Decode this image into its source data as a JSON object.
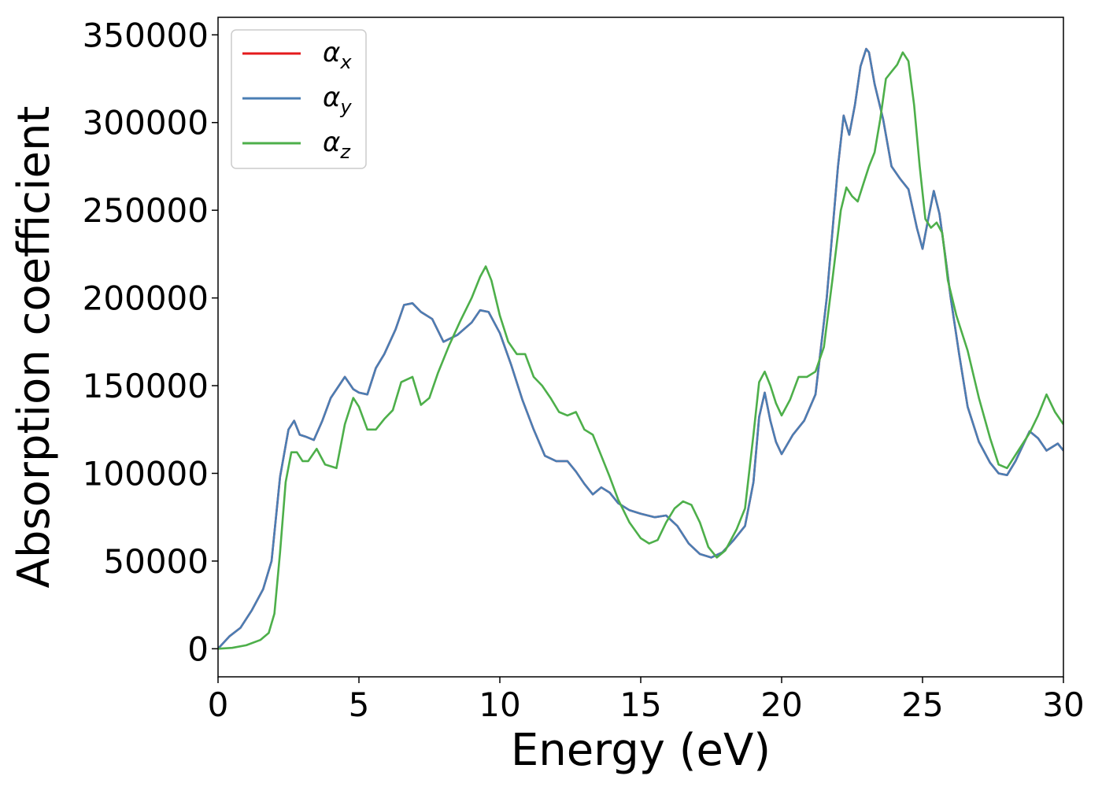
{
  "chart_data": {
    "type": "line",
    "xlabel": "Energy (eV)",
    "ylabel": "Absorption coefficient",
    "xlim": [
      0,
      30
    ],
    "ylim": [
      -16000,
      360000
    ],
    "xticks": [
      0,
      5,
      10,
      15,
      20,
      25,
      30
    ],
    "yticks": [
      0,
      50000,
      100000,
      150000,
      200000,
      250000,
      300000,
      350000
    ],
    "grid": false,
    "legend": "top-left",
    "series": [
      {
        "name": "αx",
        "base": "α",
        "sub": "x",
        "color": "#e41a1c",
        "x": [
          0,
          0.4,
          0.8,
          1.2,
          1.6,
          1.9,
          2.2,
          2.5,
          2.7,
          2.9,
          3.1,
          3.4,
          3.7,
          4.0,
          4.5,
          4.8,
          5.0,
          5.3,
          5.6,
          5.9,
          6.3,
          6.6,
          6.9,
          7.2,
          7.6,
          8.0,
          8.5,
          9.0,
          9.3,
          9.6,
          10.0,
          10.4,
          10.8,
          11.2,
          11.6,
          12.0,
          12.4,
          12.7,
          13.0,
          13.3,
          13.6,
          13.9,
          14.2,
          14.6,
          15.0,
          15.5,
          15.9,
          16.3,
          16.7,
          17.1,
          17.5,
          17.9,
          18.3,
          18.7,
          19.0,
          19.2,
          19.4,
          19.6,
          19.8,
          20.0,
          20.4,
          20.8,
          21.2,
          21.6,
          22.0,
          22.2,
          22.4,
          22.6,
          22.8,
          23.0,
          23.1,
          23.3,
          23.6,
          23.9,
          24.2,
          24.5,
          24.8,
          25.0,
          25.2,
          25.4,
          25.6,
          25.8,
          26.0,
          26.3,
          26.6,
          27.0,
          27.4,
          27.7,
          28.0,
          28.3,
          28.8,
          29.1,
          29.4,
          29.8,
          30.0
        ],
        "y": [
          0,
          7000,
          12000,
          22000,
          34000,
          50000,
          98000,
          125000,
          130000,
          122000,
          121000,
          119000,
          130000,
          143000,
          155000,
          148000,
          146000,
          145000,
          160000,
          168000,
          182000,
          196000,
          197000,
          192000,
          188000,
          175000,
          179000,
          186000,
          193000,
          192000,
          180000,
          162000,
          142000,
          125000,
          110000,
          107000,
          107000,
          101000,
          94000,
          88000,
          92000,
          89000,
          83000,
          79000,
          77000,
          75000,
          76000,
          70000,
          60000,
          54000,
          52000,
          55000,
          62000,
          70000,
          95000,
          132000,
          146000,
          130000,
          118000,
          111000,
          122000,
          130000,
          145000,
          200000,
          275000,
          304000,
          293000,
          310000,
          332000,
          342000,
          340000,
          322000,
          302000,
          275000,
          268000,
          262000,
          240000,
          228000,
          245000,
          261000,
          248000,
          225000,
          200000,
          168000,
          138000,
          118000,
          106000,
          100000,
          99000,
          107000,
          124000,
          120000,
          113000,
          117000,
          113000
        ]
      },
      {
        "name": "αy",
        "base": "α",
        "sub": "y",
        "color": "#4a7eb4",
        "x": [
          0,
          0.4,
          0.8,
          1.2,
          1.6,
          1.9,
          2.2,
          2.5,
          2.7,
          2.9,
          3.1,
          3.4,
          3.7,
          4.0,
          4.5,
          4.8,
          5.0,
          5.3,
          5.6,
          5.9,
          6.3,
          6.6,
          6.9,
          7.2,
          7.6,
          8.0,
          8.5,
          9.0,
          9.3,
          9.6,
          10.0,
          10.4,
          10.8,
          11.2,
          11.6,
          12.0,
          12.4,
          12.7,
          13.0,
          13.3,
          13.6,
          13.9,
          14.2,
          14.6,
          15.0,
          15.5,
          15.9,
          16.3,
          16.7,
          17.1,
          17.5,
          17.9,
          18.3,
          18.7,
          19.0,
          19.2,
          19.4,
          19.6,
          19.8,
          20.0,
          20.4,
          20.8,
          21.2,
          21.6,
          22.0,
          22.2,
          22.4,
          22.6,
          22.8,
          23.0,
          23.1,
          23.3,
          23.6,
          23.9,
          24.2,
          24.5,
          24.8,
          25.0,
          25.2,
          25.4,
          25.6,
          25.8,
          26.0,
          26.3,
          26.6,
          27.0,
          27.4,
          27.7,
          28.0,
          28.3,
          28.8,
          29.1,
          29.4,
          29.8,
          30.0
        ],
        "y": [
          0,
          7000,
          12000,
          22000,
          34000,
          50000,
          98000,
          125000,
          130000,
          122000,
          121000,
          119000,
          130000,
          143000,
          155000,
          148000,
          146000,
          145000,
          160000,
          168000,
          182000,
          196000,
          197000,
          192000,
          188000,
          175000,
          179000,
          186000,
          193000,
          192000,
          180000,
          162000,
          142000,
          125000,
          110000,
          107000,
          107000,
          101000,
          94000,
          88000,
          92000,
          89000,
          83000,
          79000,
          77000,
          75000,
          76000,
          70000,
          60000,
          54000,
          52000,
          55000,
          62000,
          70000,
          95000,
          132000,
          146000,
          130000,
          118000,
          111000,
          122000,
          130000,
          145000,
          200000,
          275000,
          304000,
          293000,
          310000,
          332000,
          342000,
          340000,
          322000,
          302000,
          275000,
          268000,
          262000,
          240000,
          228000,
          245000,
          261000,
          248000,
          225000,
          200000,
          168000,
          138000,
          118000,
          106000,
          100000,
          99000,
          107000,
          124000,
          120000,
          113000,
          117000,
          113000
        ]
      },
      {
        "name": "αz",
        "base": "α",
        "sub": "z",
        "color": "#4daf4a",
        "x": [
          0,
          0.5,
          1.0,
          1.5,
          1.8,
          2.0,
          2.2,
          2.4,
          2.6,
          2.8,
          3.0,
          3.2,
          3.5,
          3.8,
          4.2,
          4.5,
          4.8,
          5.0,
          5.3,
          5.6,
          5.9,
          6.2,
          6.5,
          6.9,
          7.2,
          7.5,
          7.8,
          8.2,
          8.6,
          9.0,
          9.3,
          9.5,
          9.7,
          10.0,
          10.3,
          10.6,
          10.9,
          11.2,
          11.5,
          11.8,
          12.1,
          12.4,
          12.7,
          13.0,
          13.3,
          13.6,
          13.9,
          14.2,
          14.6,
          15.0,
          15.3,
          15.6,
          15.9,
          16.2,
          16.5,
          16.8,
          17.1,
          17.4,
          17.7,
          18.0,
          18.4,
          18.7,
          19.0,
          19.2,
          19.4,
          19.6,
          19.8,
          20.0,
          20.3,
          20.6,
          20.9,
          21.2,
          21.5,
          21.8,
          22.1,
          22.3,
          22.5,
          22.7,
          22.9,
          23.1,
          23.3,
          23.5,
          23.7,
          23.9,
          24.1,
          24.3,
          24.5,
          24.7,
          24.9,
          25.1,
          25.3,
          25.5,
          25.7,
          25.9,
          26.2,
          26.6,
          27.0,
          27.4,
          27.7,
          28.0,
          28.4,
          28.8,
          29.1,
          29.4,
          29.7,
          30.0
        ],
        "y": [
          0,
          500,
          2000,
          5000,
          9000,
          20000,
          55000,
          95000,
          112000,
          112000,
          107000,
          107000,
          114000,
          105000,
          103000,
          128000,
          143000,
          138000,
          125000,
          125000,
          131000,
          136000,
          152000,
          155000,
          139000,
          143000,
          157000,
          173000,
          187000,
          200000,
          212000,
          218000,
          210000,
          190000,
          175000,
          168000,
          168000,
          155000,
          150000,
          143000,
          135000,
          133000,
          135000,
          125000,
          122000,
          110000,
          98000,
          85000,
          72000,
          63000,
          60000,
          62000,
          72000,
          80000,
          84000,
          82000,
          72000,
          58000,
          52000,
          56000,
          68000,
          80000,
          122000,
          152000,
          158000,
          150000,
          140000,
          133000,
          142000,
          155000,
          155000,
          158000,
          172000,
          210000,
          250000,
          263000,
          258000,
          255000,
          265000,
          275000,
          283000,
          302000,
          325000,
          329000,
          333000,
          340000,
          335000,
          310000,
          275000,
          245000,
          240000,
          243000,
          237000,
          210000,
          190000,
          170000,
          143000,
          120000,
          105000,
          103000,
          113000,
          123000,
          133000,
          145000,
          135000,
          128000
        ]
      }
    ]
  }
}
